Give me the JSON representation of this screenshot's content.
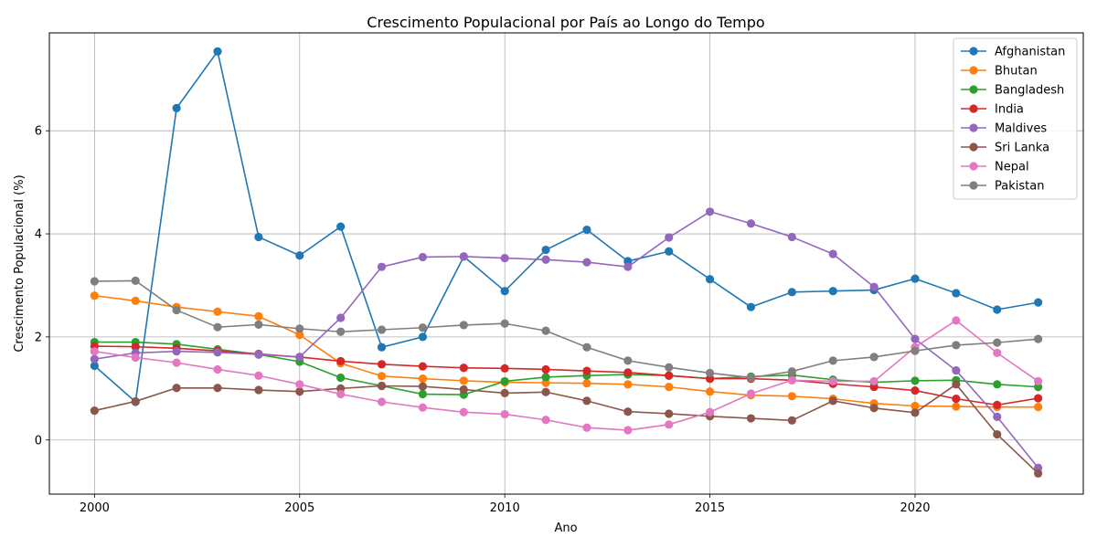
{
  "chart_data": {
    "type": "line",
    "title": "Crescimento Populacional por País ao Longo do Tempo",
    "xlabel": "Ano",
    "ylabel": "Crescimento Populacional (%)",
    "xlim": [
      1998.9,
      2024.1
    ],
    "ylim": [
      -1.05,
      7.9
    ],
    "x_ticks": [
      2000,
      2005,
      2010,
      2015,
      2020
    ],
    "y_ticks": [
      0,
      2,
      4,
      6
    ],
    "grid": true,
    "legend_position": "top-right",
    "x": [
      2000,
      2001,
      2002,
      2003,
      2004,
      2005,
      2006,
      2007,
      2008,
      2009,
      2010,
      2011,
      2012,
      2013,
      2014,
      2015,
      2016,
      2017,
      2018,
      2019,
      2020,
      2021,
      2022,
      2023
    ],
    "series": [
      {
        "name": "Afghanistan",
        "color": "#1f77b4",
        "values": [
          1.44,
          0.74,
          6.44,
          7.54,
          3.94,
          3.58,
          4.14,
          1.8,
          2.0,
          3.56,
          2.89,
          3.69,
          4.08,
          3.47,
          3.66,
          3.12,
          2.58,
          2.87,
          2.89,
          2.91,
          3.13,
          2.85,
          2.53,
          2.67
        ]
      },
      {
        "name": "Bhutan",
        "color": "#ff7f0e",
        "values": [
          2.8,
          2.7,
          2.58,
          2.49,
          2.4,
          2.04,
          1.49,
          1.24,
          1.19,
          1.15,
          1.12,
          1.11,
          1.1,
          1.08,
          1.03,
          0.94,
          0.87,
          0.85,
          0.8,
          0.71,
          0.66,
          0.65,
          0.64,
          0.64
        ]
      },
      {
        "name": "Bangladesh",
        "color": "#2ca02c",
        "values": [
          1.9,
          1.9,
          1.86,
          1.76,
          1.66,
          1.52,
          1.21,
          1.05,
          0.89,
          0.88,
          1.14,
          1.22,
          1.25,
          1.27,
          1.25,
          1.19,
          1.23,
          1.26,
          1.17,
          1.12,
          1.15,
          1.16,
          1.08,
          1.03
        ]
      },
      {
        "name": "India",
        "color": "#d62728",
        "values": [
          1.82,
          1.81,
          1.78,
          1.73,
          1.67,
          1.61,
          1.53,
          1.47,
          1.43,
          1.4,
          1.39,
          1.37,
          1.34,
          1.31,
          1.25,
          1.19,
          1.19,
          1.16,
          1.09,
          1.03,
          0.96,
          0.8,
          0.68,
          0.81
        ]
      },
      {
        "name": "Maldives",
        "color": "#9467bd",
        "values": [
          1.57,
          1.69,
          1.72,
          1.7,
          1.66,
          1.61,
          2.37,
          3.36,
          3.55,
          3.56,
          3.53,
          3.5,
          3.45,
          3.36,
          3.93,
          4.43,
          4.2,
          3.94,
          3.61,
          2.97,
          1.96,
          1.35,
          0.45,
          -0.54
        ]
      },
      {
        "name": "Sri Lanka",
        "color": "#8c564b",
        "values": [
          0.57,
          0.75,
          1.01,
          1.01,
          0.97,
          0.94,
          1.0,
          1.05,
          1.04,
          0.98,
          0.91,
          0.93,
          0.76,
          0.55,
          0.51,
          0.46,
          0.42,
          0.38,
          0.76,
          0.62,
          0.53,
          1.08,
          0.11,
          -0.65
        ]
      },
      {
        "name": "Nepal",
        "color": "#e377c2",
        "values": [
          1.72,
          1.6,
          1.5,
          1.37,
          1.25,
          1.08,
          0.89,
          0.74,
          0.63,
          0.54,
          0.5,
          0.39,
          0.24,
          0.19,
          0.3,
          0.54,
          0.9,
          1.16,
          1.14,
          1.14,
          1.8,
          2.32,
          1.69,
          1.14
        ]
      },
      {
        "name": "Pakistan",
        "color": "#7f7f7f",
        "values": [
          3.08,
          3.09,
          2.52,
          2.19,
          2.24,
          2.16,
          2.1,
          2.14,
          2.18,
          2.23,
          2.26,
          2.12,
          1.8,
          1.54,
          1.41,
          1.3,
          1.21,
          1.33,
          1.54,
          1.61,
          1.73,
          1.84,
          1.89,
          1.96
        ]
      }
    ]
  }
}
